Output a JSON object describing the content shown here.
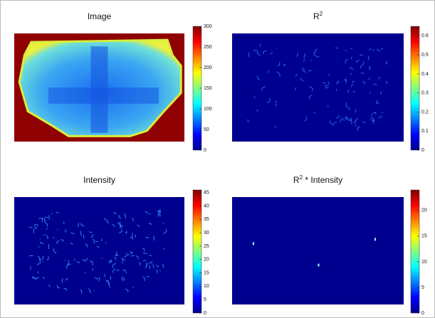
{
  "chart_data": [
    {
      "type": "image",
      "title": "Image",
      "clim": [
        0,
        300
      ],
      "cticks": [
        0,
        50,
        100,
        150,
        200,
        250,
        300
      ]
    },
    {
      "type": "image",
      "title": "R",
      "title_superscript": "2",
      "clim": [
        0,
        0.65
      ],
      "cticks": [
        0,
        0.1,
        0.2,
        0.3,
        0.4,
        0.5,
        0.6
      ]
    },
    {
      "type": "image",
      "title": "Intensity",
      "clim": [
        0,
        46
      ],
      "cticks": [
        0,
        5,
        10,
        15,
        20,
        25,
        30,
        35,
        40,
        45
      ]
    },
    {
      "type": "image",
      "title": "R",
      "title_superscript": "2",
      "title_suffix": " * Intensity",
      "clim": [
        0,
        24
      ],
      "cticks": [
        0,
        5,
        10,
        15,
        20
      ]
    }
  ]
}
